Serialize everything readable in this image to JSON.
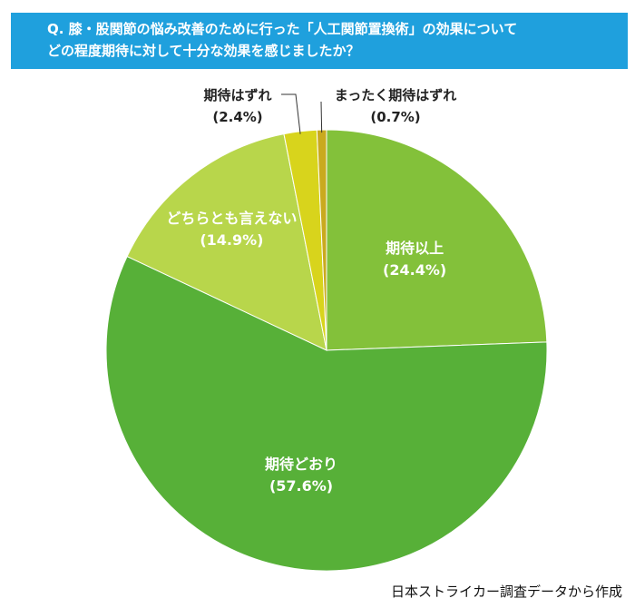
{
  "title_lines": [
    "Q. 膝・股関節の悩み改善のために行った「人工関節置換術」の効果について",
    "どの程度期待に対して十分な効果を感じましたか？"
  ],
  "source": "日本ストライカー調査データから作成",
  "colors": {
    "title_bg": "#1fa0dd",
    "slices": [
      "#83c13a",
      "#57b038",
      "#b8d64b",
      "#d8d41c",
      "#c9aa1e"
    ]
  },
  "chart_data": {
    "type": "pie",
    "title": "",
    "start": "12 o'clock, clockwise",
    "slices": [
      {
        "label": "期待以上",
        "pct_label": "(24.4%)",
        "value": 24.4
      },
      {
        "label": "期待どおり",
        "pct_label": "(57.6%)",
        "value": 57.6
      },
      {
        "label": "どちらとも言えない",
        "pct_label": "(14.9%)",
        "value": 14.9
      },
      {
        "label": "期待はずれ",
        "pct_label": "(2.4%)",
        "value": 2.4
      },
      {
        "label": "まったく期待はずれ",
        "pct_label": "(0.7%)",
        "value": 0.7
      }
    ]
  }
}
